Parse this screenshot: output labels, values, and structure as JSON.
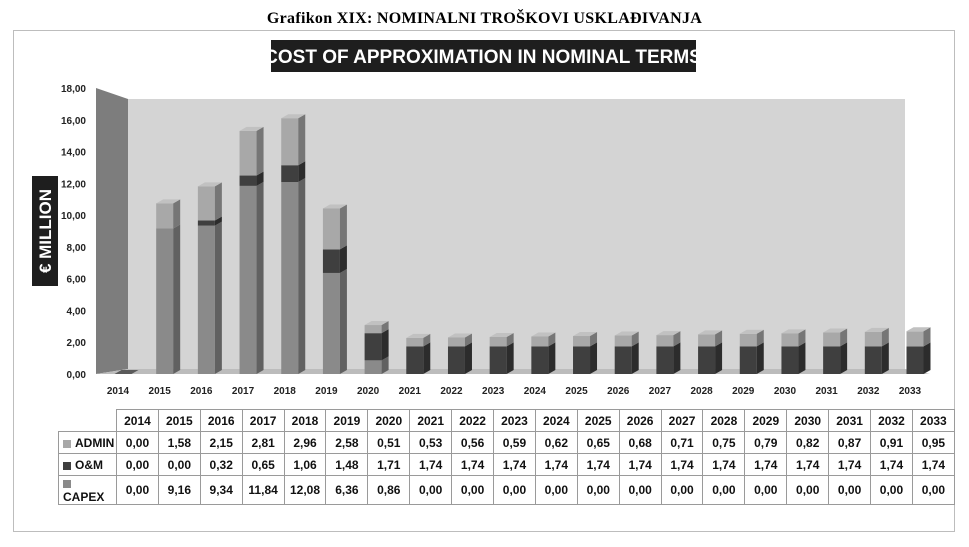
{
  "caption": "Grafikon XIX: NOMINALNI TROŠKOVI USKLAĐIVANJA",
  "chart_data": {
    "type": "bar",
    "stacked": true,
    "style": "3d-column",
    "title": "COST OF APPROXIMATION IN NOMINAL TERMS",
    "ylabel": "€ MILLION",
    "xlabel": "",
    "ylim": [
      0,
      18
    ],
    "yticks": [
      "0,00",
      "2,00",
      "4,00",
      "6,00",
      "8,00",
      "10,00",
      "12,00",
      "14,00",
      "16,00",
      "18,00"
    ],
    "categories": [
      "2014",
      "2015",
      "2016",
      "2017",
      "2018",
      "2019",
      "2020",
      "2021",
      "2022",
      "2023",
      "2024",
      "2025",
      "2026",
      "2027",
      "2028",
      "2029",
      "2030",
      "2031",
      "2032",
      "2033"
    ],
    "series": [
      {
        "name": "CAPEX",
        "values": [
          0.0,
          9.16,
          9.34,
          11.84,
          12.08,
          6.36,
          0.86,
          0.0,
          0.0,
          0.0,
          0.0,
          0.0,
          0.0,
          0.0,
          0.0,
          0.0,
          0.0,
          0.0,
          0.0,
          0.0
        ],
        "labels": [
          "0,00",
          "9,16",
          "9,34",
          "11,84",
          "12,08",
          "6,36",
          "0,86",
          "0,00",
          "0,00",
          "0,00",
          "0,00",
          "0,00",
          "0,00",
          "0,00",
          "0,00",
          "0,00",
          "0,00",
          "0,00",
          "0,00",
          "0,00"
        ],
        "color": "#8a8a8a"
      },
      {
        "name": "O&M",
        "values": [
          0.0,
          0.0,
          0.32,
          0.65,
          1.06,
          1.48,
          1.71,
          1.74,
          1.74,
          1.74,
          1.74,
          1.74,
          1.74,
          1.74,
          1.74,
          1.74,
          1.74,
          1.74,
          1.74,
          1.74
        ],
        "labels": [
          "0,00",
          "0,00",
          "0,32",
          "0,65",
          "1,06",
          "1,48",
          "1,71",
          "1,74",
          "1,74",
          "1,74",
          "1,74",
          "1,74",
          "1,74",
          "1,74",
          "1,74",
          "1,74",
          "1,74",
          "1,74",
          "1,74",
          "1,74"
        ],
        "color": "#3f3f3f"
      },
      {
        "name": "ADMIN",
        "values": [
          0.0,
          1.58,
          2.15,
          2.81,
          2.96,
          2.58,
          0.51,
          0.53,
          0.56,
          0.59,
          0.62,
          0.65,
          0.68,
          0.71,
          0.75,
          0.79,
          0.82,
          0.87,
          0.91,
          0.95
        ],
        "labels": [
          "0,00",
          "1,58",
          "2,15",
          "2,81",
          "2,96",
          "2,58",
          "0,51",
          "0,53",
          "0,56",
          "0,59",
          "0,62",
          "0,65",
          "0,68",
          "0,71",
          "0,75",
          "0,79",
          "0,82",
          "0,87",
          "0,91",
          "0,95"
        ],
        "color": "#a8a8a8"
      }
    ],
    "table_row_order": [
      "ADMIN",
      "O&M",
      "CAPEX"
    ],
    "grid": false,
    "legend": "data-table-below"
  }
}
